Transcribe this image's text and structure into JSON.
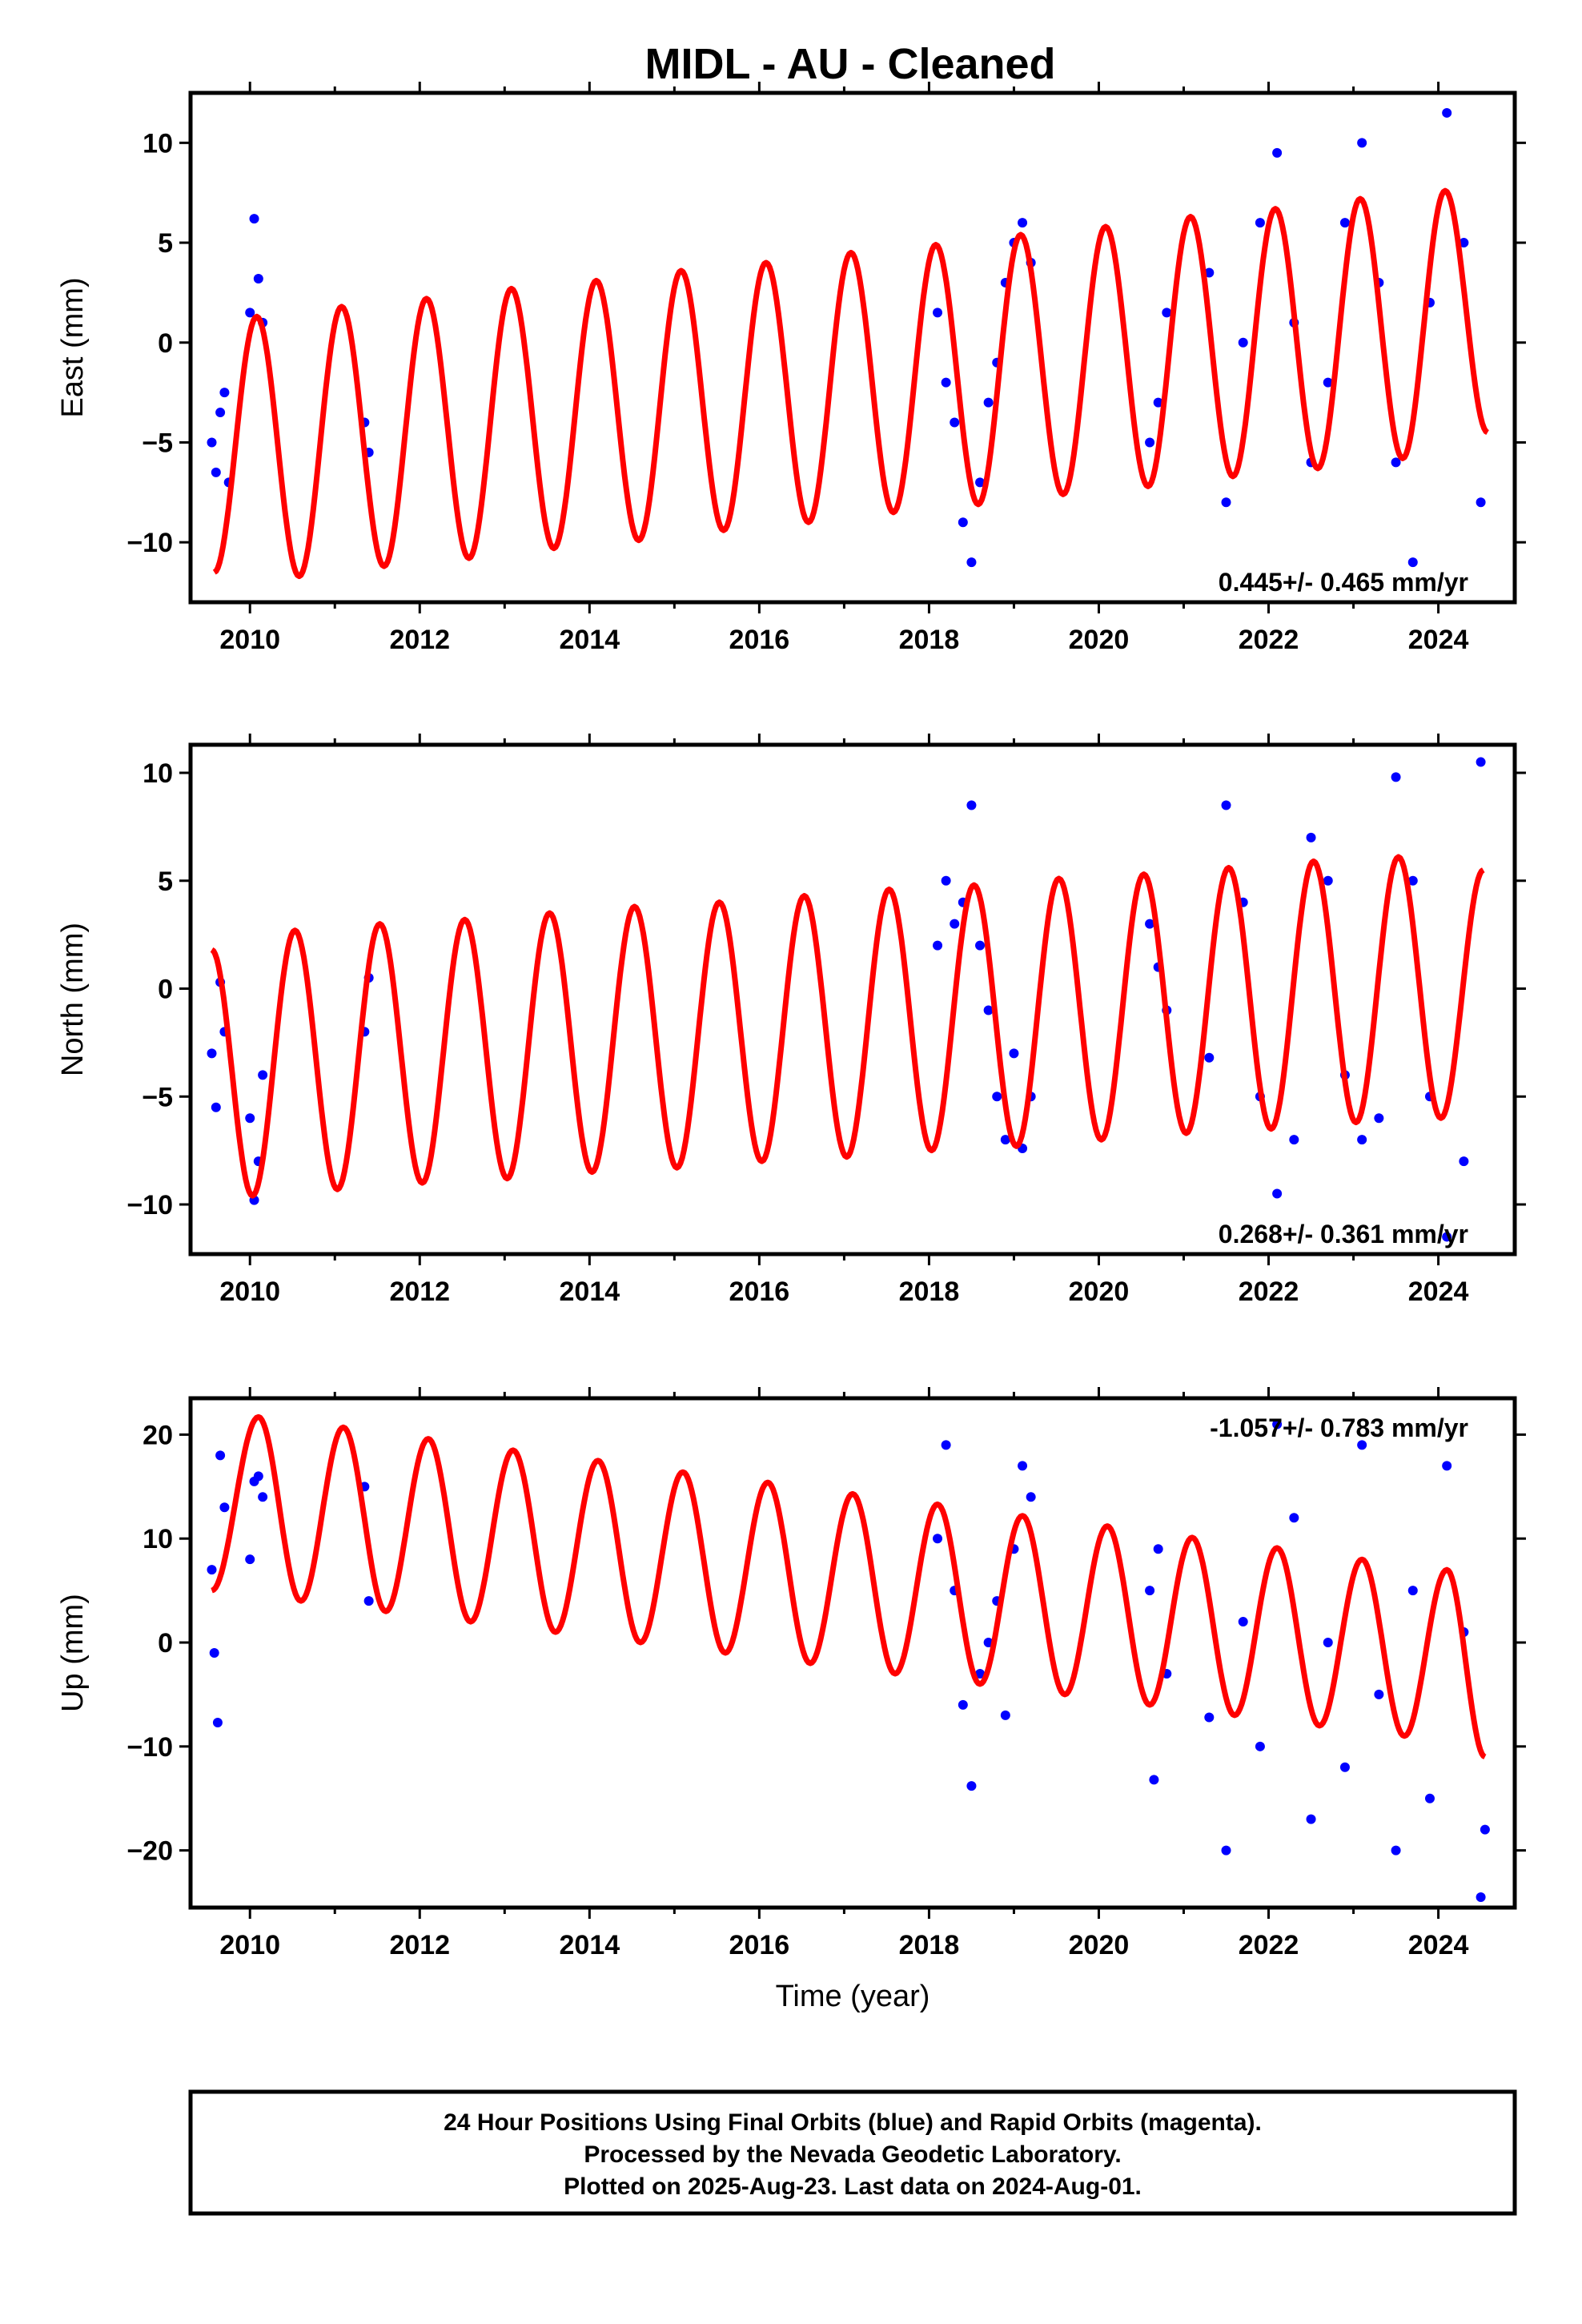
{
  "chart_data": [
    {
      "type": "scatter",
      "title": "MIDL  - AU - Cleaned",
      "ylabel": "East (mm)",
      "xlabel": "",
      "xlim": [
        2009.3,
        2024.9
      ],
      "ylim": [
        -13,
        12.5
      ],
      "xticks": [
        2010,
        2012,
        2014,
        2016,
        2018,
        2020,
        2022,
        2024
      ],
      "yticks": [
        -10,
        -5,
        0,
        5,
        10
      ],
      "annotation": "0.445+/- 0.465 mm/yr",
      "annotation_position": "bottom-right",
      "series": [
        {
          "kind": "points",
          "color": "#0000ff",
          "x": [
            2009.55,
            2009.6,
            2009.65,
            2009.7,
            2009.75,
            2010.0,
            2010.05,
            2010.1,
            2010.15,
            2011.35,
            2011.4,
            2018.1,
            2018.2,
            2018.3,
            2018.4,
            2018.5,
            2018.6,
            2018.7,
            2018.8,
            2018.9,
            2019.0,
            2019.1,
            2019.2,
            2020.6,
            2020.7,
            2020.8,
            2021.3,
            2021.5,
            2021.7,
            2021.9,
            2022.1,
            2022.3,
            2022.5,
            2022.7,
            2022.9,
            2023.1,
            2023.3,
            2023.5,
            2023.7,
            2023.9,
            2024.1,
            2024.3,
            2024.5
          ],
          "y": [
            -5,
            -6.5,
            -3.5,
            -2.5,
            -7,
            1.5,
            6.2,
            3.2,
            1,
            -4,
            -5.5,
            1.5,
            -2,
            -4,
            -9,
            -11,
            -7,
            -3,
            -1,
            3,
            5,
            6,
            4,
            -5,
            -3,
            1.5,
            3.5,
            -8,
            0,
            6,
            9.5,
            1,
            -6,
            -2,
            6,
            10,
            3,
            -6,
            -11,
            2,
            11.5,
            5,
            -8
          ]
        },
        {
          "kind": "fit",
          "color": "#ff0000",
          "type": "line",
          "x": [
            2009.58,
            2010.08,
            2010.58,
            2011.08,
            2011.58,
            2012.08,
            2012.58,
            2013.08,
            2013.58,
            2014.08,
            2014.58,
            2015.08,
            2015.58,
            2016.08,
            2016.58,
            2017.08,
            2017.58,
            2018.08,
            2018.58,
            2019.08,
            2019.58,
            2020.08,
            2020.58,
            2021.08,
            2021.58,
            2022.08,
            2022.58,
            2023.08,
            2023.58,
            2024.08,
            2024.58
          ],
          "y": [
            -11.5,
            1.3,
            -11.7,
            1.8,
            -11.2,
            2.2,
            -10.8,
            2.7,
            -10.3,
            3.1,
            -9.9,
            3.6,
            -9.4,
            4,
            -9,
            4.5,
            -8.5,
            4.9,
            -8.1,
            5.4,
            -7.6,
            5.8,
            -7.2,
            6.3,
            -6.7,
            6.7,
            -6.3,
            7.2,
            -5.8,
            7.6,
            -4.5
          ]
        }
      ]
    },
    {
      "type": "scatter",
      "ylabel": "North (mm)",
      "xlabel": "",
      "xlim": [
        2009.3,
        2024.9
      ],
      "ylim": [
        -12.3,
        11.3
      ],
      "xticks": [
        2010,
        2012,
        2014,
        2016,
        2018,
        2020,
        2022,
        2024
      ],
      "yticks": [
        -10,
        -5,
        0,
        5,
        10
      ],
      "annotation": "0.268+/- 0.361 mm/yr",
      "annotation_position": "bottom-right",
      "series": [
        {
          "kind": "points",
          "color": "#0000ff",
          "x": [
            2009.55,
            2009.6,
            2009.65,
            2009.7,
            2010.0,
            2010.05,
            2010.1,
            2010.15,
            2011.35,
            2011.4,
            2018.1,
            2018.2,
            2018.3,
            2018.4,
            2018.5,
            2018.6,
            2018.7,
            2018.8,
            2018.9,
            2019.0,
            2019.1,
            2019.2,
            2020.6,
            2020.7,
            2020.8,
            2021.3,
            2021.5,
            2021.7,
            2021.9,
            2022.1,
            2022.3,
            2022.5,
            2022.7,
            2022.9,
            2023.1,
            2023.3,
            2023.5,
            2023.7,
            2023.9,
            2024.1,
            2024.3,
            2024.5
          ],
          "y": [
            -3,
            -5.5,
            0.3,
            -2,
            -6,
            -9.8,
            -8,
            -4,
            -2,
            0.5,
            2,
            5,
            3,
            4,
            8.5,
            2,
            -1,
            -5,
            -7,
            -3,
            -7.4,
            -5,
            3,
            1,
            -1,
            -3.2,
            8.5,
            4,
            -5,
            -9.5,
            -7,
            7,
            5,
            -4,
            -7,
            -6,
            9.8,
            5,
            -5,
            -11.5,
            -8,
            10.5
          ]
        },
        {
          "kind": "fit",
          "color": "#ff0000",
          "type": "line",
          "x": [
            2009.55,
            2010.03,
            2010.53,
            2011.03,
            2011.53,
            2012.03,
            2012.53,
            2013.03,
            2013.53,
            2014.03,
            2014.53,
            2015.03,
            2015.53,
            2016.03,
            2016.53,
            2017.03,
            2017.53,
            2018.03,
            2018.53,
            2019.03,
            2019.53,
            2020.03,
            2020.53,
            2021.03,
            2021.53,
            2022.03,
            2022.53,
            2023.03,
            2023.53,
            2024.03,
            2024.53
          ],
          "y": [
            1.8,
            -9.6,
            2.7,
            -9.3,
            3,
            -9,
            3.2,
            -8.8,
            3.5,
            -8.5,
            3.8,
            -8.3,
            4,
            -8,
            4.3,
            -7.8,
            4.6,
            -7.5,
            4.8,
            -7.3,
            5.1,
            -7,
            5.3,
            -6.7,
            5.6,
            -6.5,
            5.9,
            -6.2,
            6.1,
            -6,
            5.5
          ]
        }
      ]
    },
    {
      "type": "scatter",
      "ylabel": "Up (mm)",
      "xlabel": "Time (year)",
      "xlim": [
        2009.3,
        2024.9
      ],
      "ylim": [
        -25.5,
        23.5
      ],
      "xticks": [
        2010,
        2012,
        2014,
        2016,
        2018,
        2020,
        2022,
        2024
      ],
      "yticks": [
        -20,
        -10,
        0,
        10,
        20
      ],
      "annotation": "-1.057+/- 0.783 mm/yr",
      "annotation_position": "top-right",
      "series": [
        {
          "kind": "points",
          "color": "#0000ff",
          "x": [
            2009.55,
            2009.58,
            2009.62,
            2009.65,
            2009.7,
            2010.0,
            2010.05,
            2010.1,
            2010.15,
            2011.35,
            2011.4,
            2018.1,
            2018.2,
            2018.3,
            2018.4,
            2018.5,
            2018.6,
            2018.7,
            2018.8,
            2018.9,
            2019.0,
            2019.1,
            2019.2,
            2020.6,
            2020.65,
            2020.7,
            2020.8,
            2021.3,
            2021.5,
            2021.7,
            2021.9,
            2022.1,
            2022.3,
            2022.5,
            2022.7,
            2022.9,
            2023.1,
            2023.3,
            2023.5,
            2023.7,
            2023.9,
            2024.1,
            2024.3,
            2024.5,
            2024.55
          ],
          "y": [
            7,
            -1,
            -7.7,
            18,
            13,
            8,
            15.5,
            16,
            14,
            15,
            4,
            10,
            19,
            5,
            -6,
            -13.8,
            -3,
            0,
            4,
            -7,
            9,
            17,
            14,
            5,
            -13.2,
            9,
            -3,
            -7.2,
            -20,
            2,
            -10,
            21,
            12,
            -17,
            0,
            -12,
            19,
            -5,
            -20,
            5,
            -15,
            17,
            1,
            -24.5,
            -18
          ]
        },
        {
          "kind": "fit",
          "color": "#ff0000",
          "type": "line",
          "x": [
            2009.55,
            2010.1,
            2010.6,
            2011.1,
            2011.6,
            2012.1,
            2012.6,
            2013.1,
            2013.6,
            2014.1,
            2014.6,
            2015.1,
            2015.6,
            2016.1,
            2016.6,
            2017.1,
            2017.6,
            2018.1,
            2018.6,
            2019.1,
            2019.6,
            2020.1,
            2020.6,
            2021.1,
            2021.6,
            2022.1,
            2022.6,
            2023.1,
            2023.6,
            2024.1,
            2024.55
          ],
          "y": [
            5,
            21.7,
            4,
            20.7,
            3,
            19.6,
            2,
            18.5,
            1,
            17.5,
            0,
            16.4,
            -1,
            15.4,
            -2,
            14.3,
            -3,
            13.3,
            -4,
            12.2,
            -5,
            11.2,
            -6,
            10.1,
            -7,
            9.1,
            -8,
            8,
            -9,
            7,
            -11
          ]
        }
      ]
    }
  ],
  "footer": {
    "line1": "24 Hour Positions Using Final Orbits (blue) and Rapid Orbits (magenta).",
    "line2": "Processed by the Nevada Geodetic Laboratory.",
    "line3": "Plotted on 2025-Aug-23. Last data on 2024-Aug-01."
  },
  "colors": {
    "points": "#0000ff",
    "fit": "#ff0000"
  }
}
